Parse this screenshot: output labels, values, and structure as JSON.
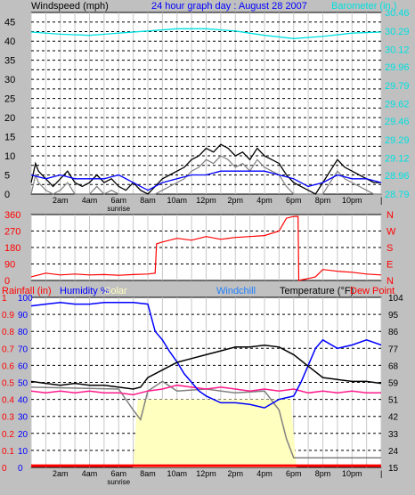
{
  "header": {
    "windspeed_label": "Windspeed (mph)",
    "title": "24 hour graph day : August 28 2007",
    "barometer_label": "Barometer (in.)"
  },
  "colors": {
    "background": "#c0c0c0",
    "plot_bg": "#ffffff",
    "grid": "#000000",
    "wind": "#000000",
    "gust": "#0000ff",
    "wind_gray": "#808080",
    "barometer": "#00e0e0",
    "direction": "#ff0000",
    "temperature": "#000000",
    "humidity": "#0000ff",
    "dewpoint": "#ff1a8c",
    "windchill": "#808080",
    "solar": "#ffffc0",
    "rain": "#ff0000"
  },
  "time_labels": [
    "2am",
    "4am",
    "6am",
    "8am",
    "10am",
    "12pm",
    "2pm",
    "4pm",
    "6pm",
    "8pm",
    "10pm"
  ],
  "sunrise_label": "sunrise",
  "chart_data": [
    {
      "type": "line",
      "panel": "wind_barometer",
      "x_range_hours": [
        0,
        24
      ],
      "left_axis": {
        "label": "Windspeed (mph)",
        "ticks": [
          "0",
          "2.5",
          "5",
          "7.5",
          "10",
          "12.5",
          "15",
          "17.5",
          "20",
          "22.5",
          "25",
          "27.5",
          "30",
          "32.5",
          "35",
          "37.5",
          "40",
          "42.5",
          "45",
          "47.5"
        ],
        "printed": [
          "0",
          "5",
          "10",
          "15",
          "20",
          "25",
          "30",
          "35",
          "40",
          "45"
        ],
        "ylim": [
          0,
          47.5
        ]
      },
      "right_axis": {
        "label": "Barometer (in.)",
        "ticks": [
          "28.79",
          "28.96",
          "29.12",
          "29.29",
          "29.46",
          "29.62",
          "29.79",
          "29.96",
          "30.12",
          "30.29",
          "30.46"
        ],
        "ylim": [
          28.79,
          30.46
        ]
      },
      "series": [
        {
          "key": "wind",
          "values": [
            [
              0,
              3
            ],
            [
              0.3,
              8
            ],
            [
              0.5,
              6
            ],
            [
              1,
              4
            ],
            [
              1.5,
              2
            ],
            [
              2,
              4
            ],
            [
              2.5,
              6
            ],
            [
              3,
              3
            ],
            [
              3.5,
              2
            ],
            [
              4,
              3
            ],
            [
              4.5,
              5
            ],
            [
              5,
              3
            ],
            [
              5.5,
              4
            ],
            [
              6,
              2
            ],
            [
              6.5,
              1
            ],
            [
              7,
              3
            ],
            [
              7.5,
              1
            ],
            [
              8,
              0
            ],
            [
              8.5,
              2
            ],
            [
              9,
              4
            ],
            [
              9.5,
              5
            ],
            [
              10,
              6
            ],
            [
              10.5,
              7
            ],
            [
              11,
              9
            ],
            [
              11.5,
              10
            ],
            [
              12,
              12
            ],
            [
              12.5,
              11
            ],
            [
              13,
              13
            ],
            [
              13.5,
              12
            ],
            [
              14,
              10
            ],
            [
              14.5,
              11
            ],
            [
              15,
              9
            ],
            [
              15.5,
              12
            ],
            [
              16,
              10
            ],
            [
              16.5,
              9
            ],
            [
              17,
              8
            ],
            [
              17.5,
              5
            ],
            [
              18,
              3
            ],
            [
              18.5,
              2
            ],
            [
              19,
              1
            ],
            [
              19.5,
              0
            ],
            [
              20,
              3
            ],
            [
              20.5,
              6
            ],
            [
              21,
              9
            ],
            [
              21.5,
              7
            ],
            [
              22,
              6
            ],
            [
              22.5,
              5
            ],
            [
              23,
              4
            ],
            [
              23.5,
              3
            ],
            [
              24,
              3
            ]
          ]
        },
        {
          "key": "gust",
          "values": [
            [
              0,
              5
            ],
            [
              1,
              4
            ],
            [
              2,
              5
            ],
            [
              3,
              4
            ],
            [
              4,
              4
            ],
            [
              5,
              4
            ],
            [
              6,
              5
            ],
            [
              7,
              3
            ],
            [
              8,
              1
            ],
            [
              9,
              3
            ],
            [
              10,
              4
            ],
            [
              11,
              5
            ],
            [
              12,
              5
            ],
            [
              13,
              6
            ],
            [
              14,
              6
            ],
            [
              15,
              6
            ],
            [
              16,
              6
            ],
            [
              17,
              5
            ],
            [
              18,
              4
            ],
            [
              19,
              2
            ],
            [
              20,
              3
            ],
            [
              21,
              5
            ],
            [
              22,
              4
            ],
            [
              23,
              4
            ],
            [
              24,
              3
            ]
          ]
        },
        {
          "key": "barometer",
          "values": [
            [
              0,
              30.28
            ],
            [
              2,
              30.26
            ],
            [
              4,
              30.25
            ],
            [
              6,
              30.27
            ],
            [
              8,
              30.29
            ],
            [
              10,
              30.31
            ],
            [
              12,
              30.31
            ],
            [
              14,
              30.29
            ],
            [
              16,
              30.25
            ],
            [
              18,
              30.22
            ],
            [
              20,
              30.24
            ],
            [
              22,
              30.27
            ],
            [
              24,
              30.28
            ]
          ]
        }
      ]
    },
    {
      "type": "line",
      "panel": "wind_direction",
      "left_axis": {
        "ticks": [
          "0",
          "90",
          "180",
          "270",
          "360"
        ],
        "ylim": [
          0,
          360
        ]
      },
      "right_axis": {
        "ticks": [
          "N",
          "W",
          "S",
          "E",
          "N"
        ]
      },
      "series": [
        {
          "key": "direction",
          "values": [
            [
              0,
              20
            ],
            [
              1,
              40
            ],
            [
              2,
              30
            ],
            [
              3,
              35
            ],
            [
              4,
              30
            ],
            [
              5,
              32
            ],
            [
              6,
              28
            ],
            [
              7,
              32
            ],
            [
              8,
              35
            ],
            [
              8.5,
              40
            ],
            [
              8.6,
              200
            ],
            [
              9,
              210
            ],
            [
              10,
              230
            ],
            [
              11,
              220
            ],
            [
              12,
              240
            ],
            [
              13,
              225
            ],
            [
              14,
              235
            ],
            [
              15,
              240
            ],
            [
              16,
              245
            ],
            [
              17,
              270
            ],
            [
              17.5,
              340
            ],
            [
              18,
              350
            ],
            [
              18.3,
              350
            ],
            [
              18.35,
              0
            ],
            [
              19,
              10
            ],
            [
              19.5,
              20
            ],
            [
              20,
              60
            ],
            [
              21,
              50
            ],
            [
              22,
              45
            ],
            [
              23,
              35
            ],
            [
              24,
              30
            ]
          ]
        }
      ]
    },
    {
      "type": "line",
      "panel": "temp_humidity",
      "legend": [
        "Rainfall (in)",
        "Humidity %",
        "Solar",
        "Windchill",
        "Temperature (°F)",
        "Dew Point"
      ],
      "rain_axis": {
        "ticks": [
          "0",
          "0.1",
          "0.2",
          "0.3",
          "0.4",
          "0.5",
          "0.6",
          "0.7",
          "0.8",
          "0.9",
          "1"
        ],
        "ylim": [
          0,
          1
        ]
      },
      "humidity_axis": {
        "ticks": [
          "0",
          "10",
          "20",
          "30",
          "40",
          "50",
          "60",
          "70",
          "80",
          "90",
          "100"
        ],
        "ylim": [
          0,
          100
        ]
      },
      "temp_axis": {
        "ticks": [
          "15",
          "24",
          "33",
          "42",
          "51",
          "59",
          "68",
          "77",
          "86",
          "95",
          "104"
        ],
        "ylim": [
          15,
          104
        ]
      },
      "series": [
        {
          "key": "humidity",
          "values": [
            [
              0,
              95
            ],
            [
              1,
              96
            ],
            [
              2,
              97
            ],
            [
              3,
              96
            ],
            [
              4,
              96
            ],
            [
              5,
              97
            ],
            [
              6,
              97
            ],
            [
              7,
              97
            ],
            [
              8,
              96
            ],
            [
              8.5,
              80
            ],
            [
              9,
              75
            ],
            [
              9.5,
              68
            ],
            [
              10,
              62
            ],
            [
              10.5,
              55
            ],
            [
              11,
              50
            ],
            [
              11.5,
              45
            ],
            [
              12,
              42
            ],
            [
              13,
              38
            ],
            [
              14,
              38
            ],
            [
              15,
              37
            ],
            [
              16,
              35
            ],
            [
              17,
              40
            ],
            [
              18,
              42
            ],
            [
              18.5,
              50
            ],
            [
              19,
              60
            ],
            [
              19.5,
              70
            ],
            [
              20,
              75
            ],
            [
              21,
              70
            ],
            [
              22,
              72
            ],
            [
              23,
              75
            ],
            [
              24,
              72
            ]
          ]
        },
        {
          "key": "temperature",
          "values": [
            [
              0,
              60
            ],
            [
              1,
              59
            ],
            [
              2,
              58
            ],
            [
              3,
              59
            ],
            [
              4,
              58
            ],
            [
              5,
              58
            ],
            [
              6,
              57
            ],
            [
              7,
              56
            ],
            [
              7.5,
              57
            ],
            [
              8,
              62
            ],
            [
              9,
              66
            ],
            [
              10,
              70
            ],
            [
              11,
              72
            ],
            [
              12,
              74
            ],
            [
              13,
              76
            ],
            [
              14,
              78
            ],
            [
              15,
              78
            ],
            [
              16,
              79
            ],
            [
              17,
              78
            ],
            [
              18,
              74
            ],
            [
              19,
              68
            ],
            [
              20,
              62
            ],
            [
              21,
              61
            ],
            [
              22,
              60
            ],
            [
              23,
              60
            ],
            [
              24,
              59
            ]
          ]
        },
        {
          "key": "dewpoint",
          "values": [
            [
              0,
              55
            ],
            [
              1,
              54
            ],
            [
              2,
              55
            ],
            [
              3,
              54
            ],
            [
              4,
              55
            ],
            [
              5,
              54
            ],
            [
              6,
              54
            ],
            [
              7,
              53
            ],
            [
              8,
              55
            ],
            [
              9,
              56
            ],
            [
              10,
              58
            ],
            [
              11,
              57
            ],
            [
              12,
              56
            ],
            [
              13,
              57
            ],
            [
              14,
              56
            ],
            [
              15,
              55
            ],
            [
              16,
              56
            ],
            [
              17,
              55
            ],
            [
              18,
              56
            ],
            [
              19,
              54
            ],
            [
              20,
              55
            ],
            [
              21,
              54
            ],
            [
              22,
              55
            ],
            [
              23,
              54
            ],
            [
              24,
              54
            ]
          ]
        },
        {
          "key": "windchill",
          "values": [
            [
              0,
              57
            ],
            [
              6,
              56
            ],
            [
              7,
              45
            ],
            [
              7.5,
              40
            ],
            [
              8,
              55
            ],
            [
              9,
              60
            ],
            [
              10,
              55
            ],
            [
              12,
              56
            ],
            [
              14,
              54
            ],
            [
              16,
              55
            ],
            [
              17,
              45
            ],
            [
              17.5,
              30
            ],
            [
              18,
              20
            ],
            [
              19,
              20
            ],
            [
              24,
              20
            ]
          ]
        },
        {
          "key": "solar",
          "values": [
            [
              0,
              0
            ],
            [
              7,
              0
            ],
            [
              7.3,
              40
            ],
            [
              8,
              40
            ],
            [
              9,
              40
            ],
            [
              10,
              40
            ],
            [
              11,
              40
            ],
            [
              12,
              40
            ],
            [
              13,
              40
            ],
            [
              14,
              40
            ],
            [
              15,
              40
            ],
            [
              16,
              40
            ],
            [
              17,
              40
            ],
            [
              17.8,
              40
            ],
            [
              18.2,
              0
            ],
            [
              24,
              0
            ]
          ]
        },
        {
          "key": "rain",
          "values": [
            [
              0,
              0.01
            ],
            [
              24,
              0.01
            ]
          ]
        }
      ]
    }
  ]
}
